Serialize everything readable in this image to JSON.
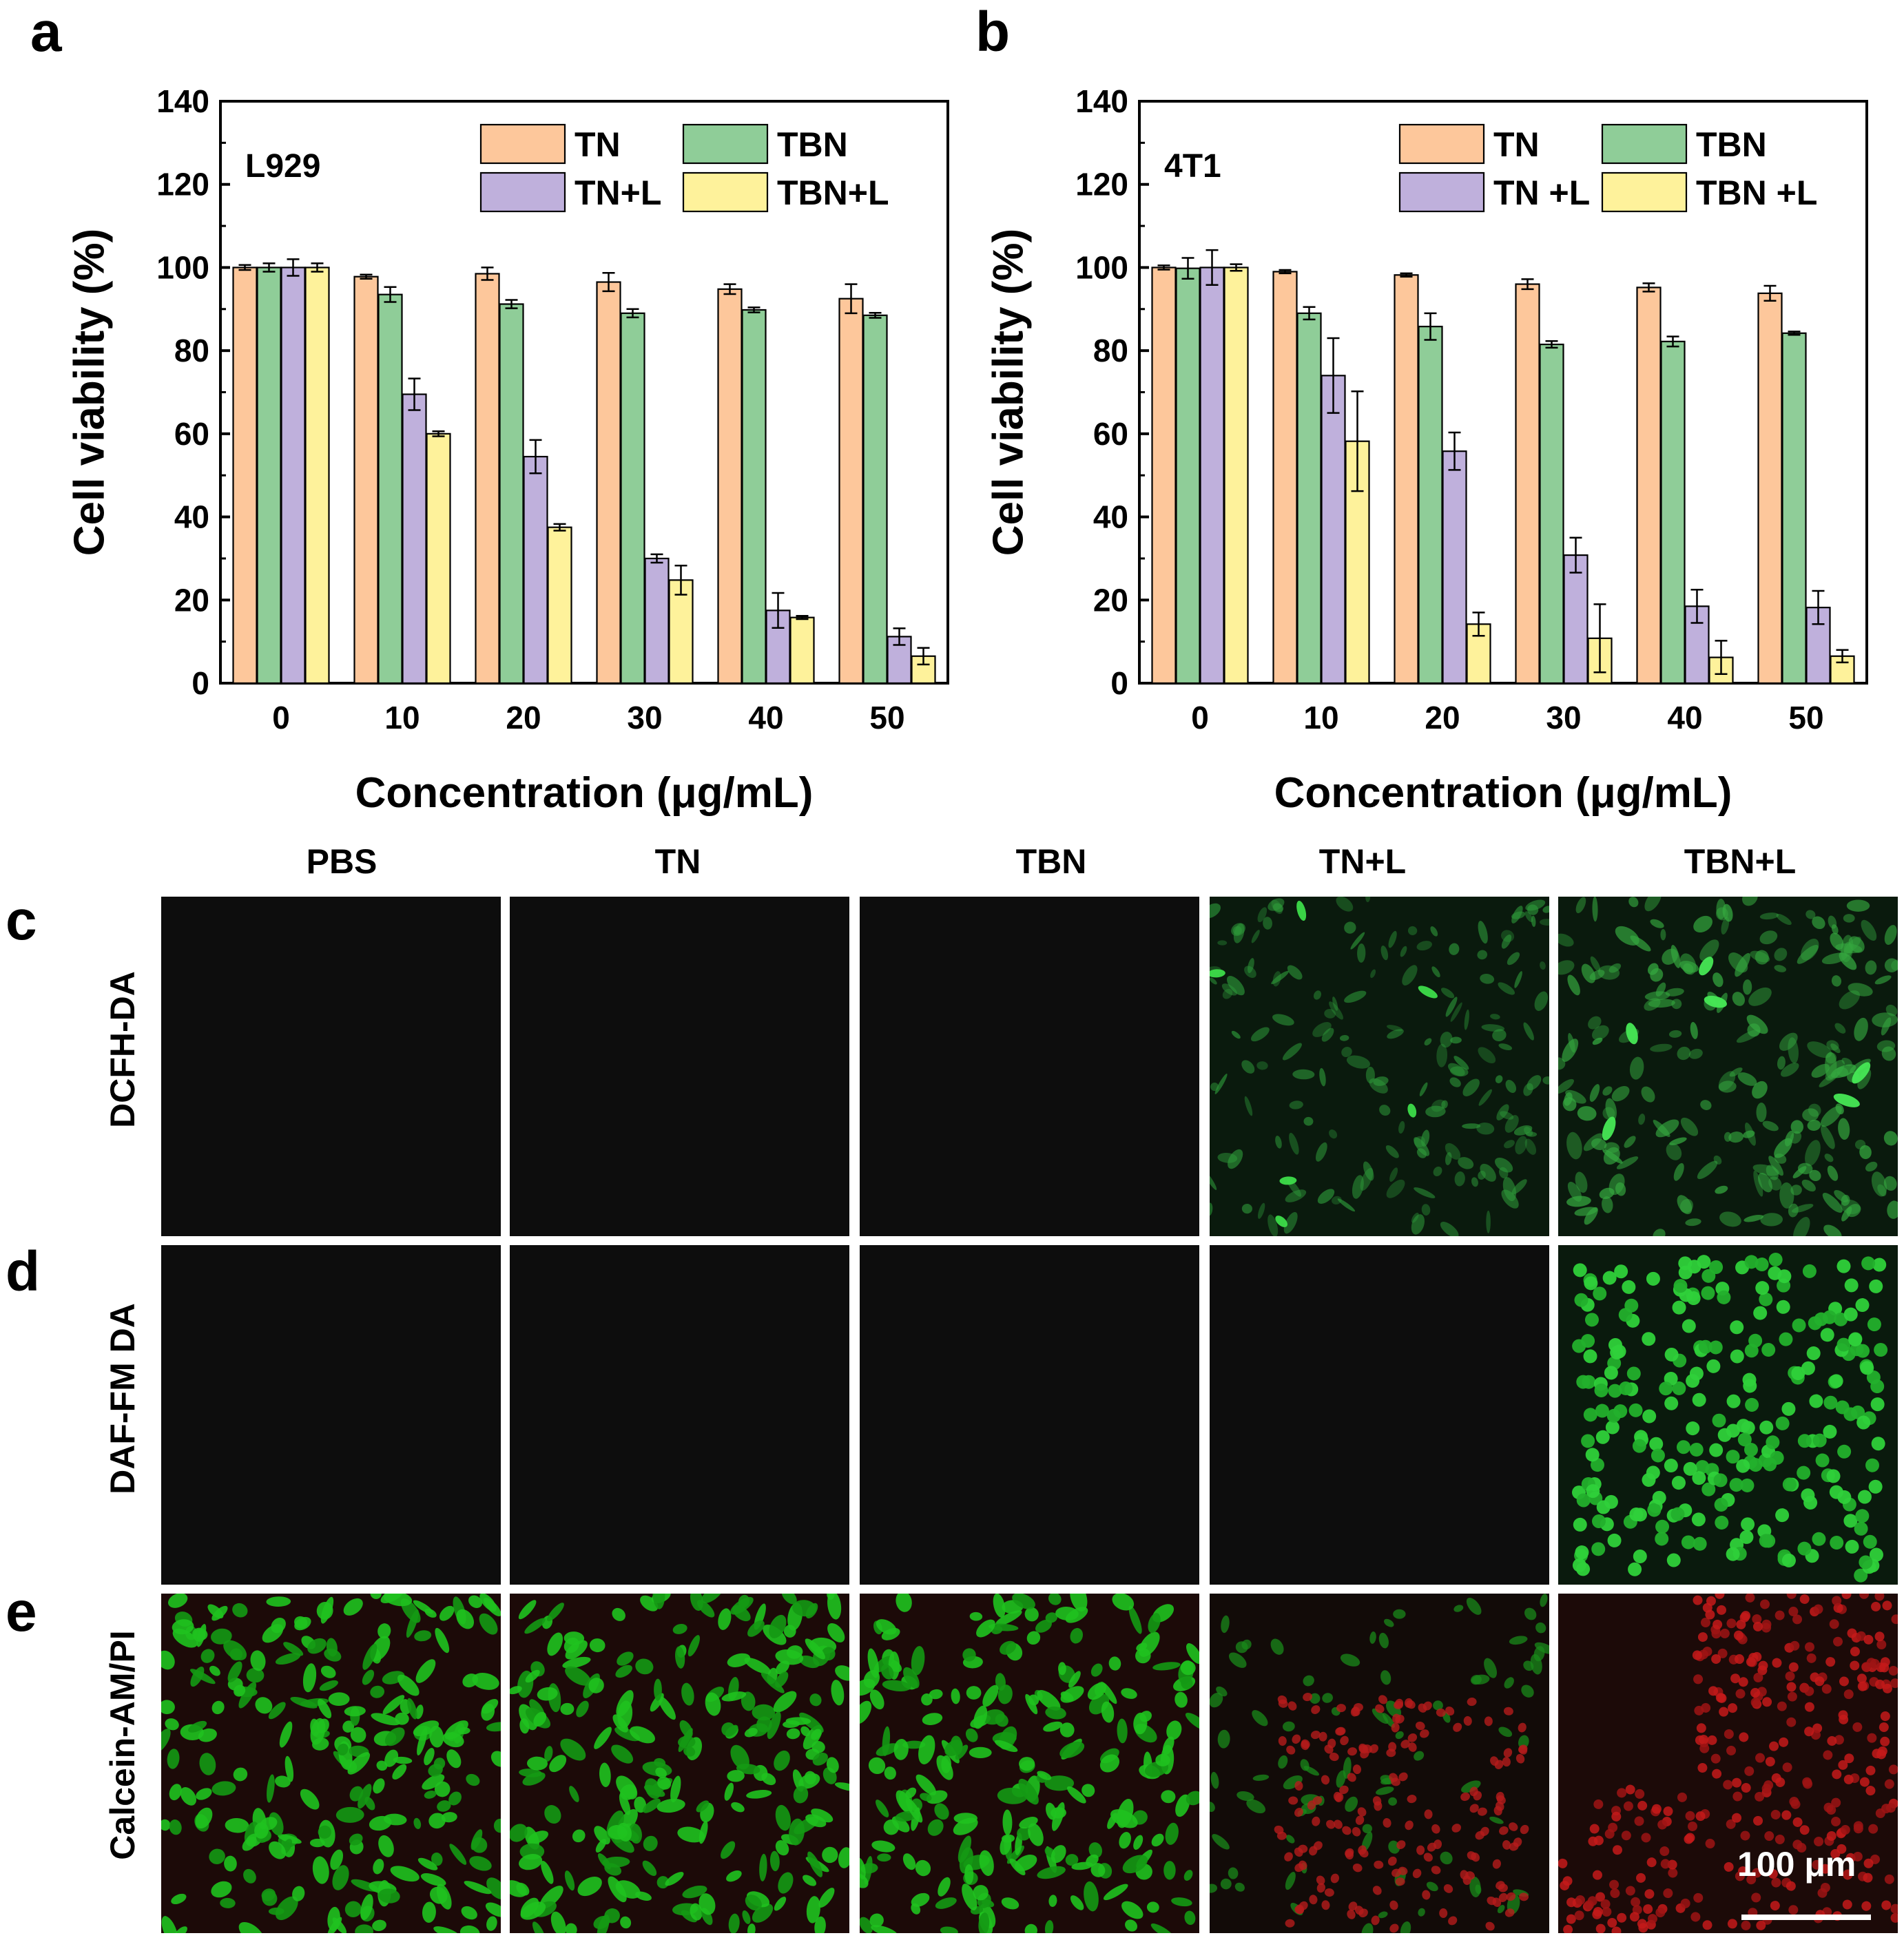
{
  "panels": {
    "a": "a",
    "b": "b",
    "c": "c",
    "d": "d",
    "e": "e"
  },
  "chart_data": [
    {
      "type": "bar",
      "panel": "a",
      "cell_line": "L929",
      "categories": [
        "0",
        "10",
        "20",
        "30",
        "40",
        "50"
      ],
      "xlabel": "Concentration (μg/mL)",
      "ylabel": "Cell viability (%)",
      "ylim": [
        0,
        140
      ],
      "yticks": [
        "0",
        "20",
        "40",
        "60",
        "80",
        "100",
        "120",
        "140"
      ],
      "legend_position": "top-right",
      "grid": false,
      "series": [
        {
          "name": "TN",
          "color": "#FDC79B",
          "values": [
            100,
            97.8,
            98.5,
            96.5,
            94.8,
            92.5
          ],
          "errors": [
            0.6,
            0.5,
            1.5,
            2.2,
            1.2,
            3.5
          ]
        },
        {
          "name": "TBN",
          "color": "#8FCD98",
          "values": [
            100,
            93.5,
            91.2,
            89,
            89.8,
            88.5
          ],
          "errors": [
            1.0,
            1.8,
            1.0,
            1.0,
            0.6,
            0.6
          ]
        },
        {
          "name": "TN+L",
          "color": "#BFB0DC",
          "values": [
            100,
            69.5,
            54.5,
            30,
            17.5,
            11.2
          ],
          "errors": [
            2.0,
            3.8,
            4.0,
            1.0,
            4.2,
            2.0
          ]
        },
        {
          "name": "TBN+L",
          "color": "#FEF29B",
          "values": [
            100,
            60,
            37.5,
            24.8,
            15.8,
            6.5
          ],
          "errors": [
            1.0,
            0.6,
            0.8,
            3.5,
            0.4,
            2.0
          ]
        }
      ]
    },
    {
      "type": "bar",
      "panel": "b",
      "cell_line": "4T1",
      "categories": [
        "0",
        "10",
        "20",
        "30",
        "40",
        "50"
      ],
      "xlabel": "Concentration (μg/mL)",
      "ylabel": "Cell viability (%)",
      "ylim": [
        0,
        140
      ],
      "yticks": [
        "0",
        "20",
        "40",
        "60",
        "80",
        "100",
        "120",
        "140"
      ],
      "legend_position": "top-right",
      "grid": false,
      "series": [
        {
          "name": "TN",
          "color": "#FDC79B",
          "values": [
            100,
            99,
            98.2,
            96,
            95.2,
            93.8
          ],
          "errors": [
            0.5,
            0.4,
            0.4,
            1.2,
            1.0,
            1.8
          ]
        },
        {
          "name": "TBN",
          "color": "#8FCD98",
          "values": [
            99.8,
            89,
            85.8,
            81.5,
            82.2,
            84.2
          ],
          "errors": [
            2.5,
            1.5,
            3.2,
            0.8,
            1.2,
            0.4
          ]
        },
        {
          "name": "TN +L",
          "color": "#BFB0DC",
          "values": [
            100,
            74,
            55.8,
            30.8,
            18.5,
            18.2
          ],
          "errors": [
            4.2,
            9.0,
            4.5,
            4.2,
            4.0,
            4.0
          ]
        },
        {
          "name": "TBN +L",
          "color": "#FEF29B",
          "values": [
            100,
            58.2,
            14.2,
            10.8,
            6.2,
            6.5
          ],
          "errors": [
            0.8,
            12.0,
            2.8,
            8.2,
            4.0,
            1.5
          ]
        }
      ]
    }
  ],
  "micrographs": {
    "columns": [
      "PBS",
      "TN",
      "TBN",
      "TN+L",
      "TBN+L"
    ],
    "rows": [
      {
        "panel": "c",
        "label": "DCFH-DA",
        "tiles": [
          "dark",
          "dark",
          "dark",
          "green-moderate",
          "green-strong"
        ]
      },
      {
        "panel": "d",
        "label": "DAF-FM DA",
        "tiles": [
          "dark",
          "dark",
          "dark",
          "dark",
          "green-round-cells"
        ]
      },
      {
        "panel": "e",
        "label": "Calcein-AM/PI",
        "tiles": [
          "live-green",
          "live-green",
          "live-green",
          "mixed-red-green",
          "dead-red"
        ]
      }
    ],
    "scale_bar": "100 μm",
    "colors": {
      "dark": "#0d0d0d",
      "green": "#22c922",
      "red": "#c41a1a",
      "bg_red": "#1c0a08"
    }
  }
}
